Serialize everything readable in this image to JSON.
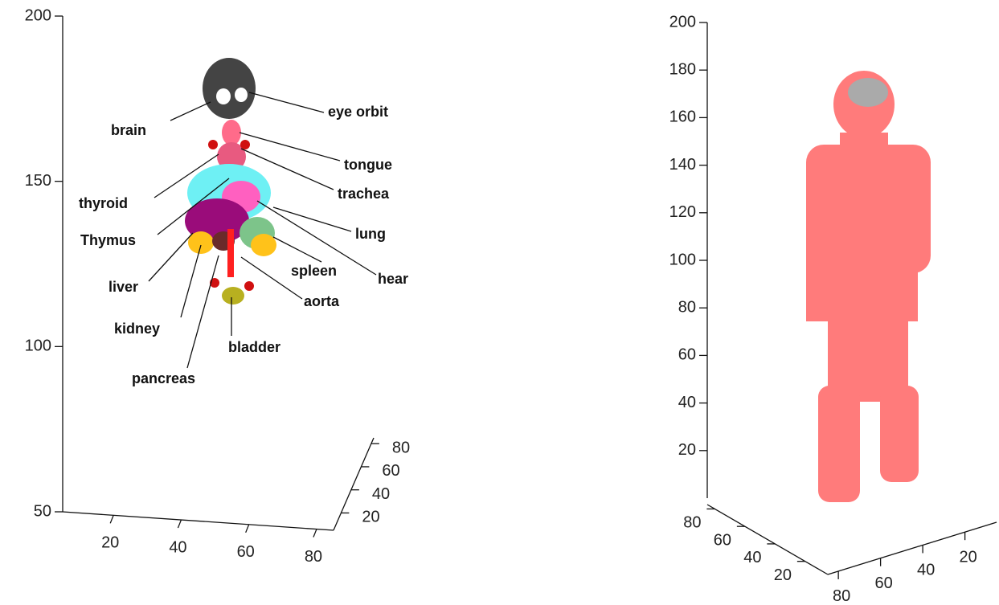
{
  "chart_data": [
    {
      "type": "scatter3d",
      "xlim": [
        5,
        85
      ],
      "xticks": [
        20,
        40,
        60,
        80
      ],
      "ylim": [
        5,
        85
      ],
      "yticks": [
        20,
        40,
        60,
        80
      ],
      "zlim": [
        50,
        200
      ],
      "zticks": [
        50,
        100,
        150,
        200
      ],
      "annotations": [
        "brain",
        "eye orbit",
        "tongue",
        "trachea",
        "thyroid",
        "Thymus",
        "lung",
        "liver",
        "spleen",
        "hear",
        "aorta",
        "kidney",
        "bladder",
        "pancreas"
      ]
    },
    {
      "type": "scatter3d",
      "xlim": [
        5,
        85
      ],
      "xticks": [
        20,
        40,
        60,
        80
      ],
      "ylim": [
        5,
        85
      ],
      "yticks": [
        20,
        40,
        60,
        80
      ],
      "zlim": [
        0,
        200
      ],
      "zticks": [
        20,
        40,
        60,
        80,
        100,
        120,
        140,
        160,
        180,
        200
      ],
      "color": "#ff7b7b"
    }
  ]
}
